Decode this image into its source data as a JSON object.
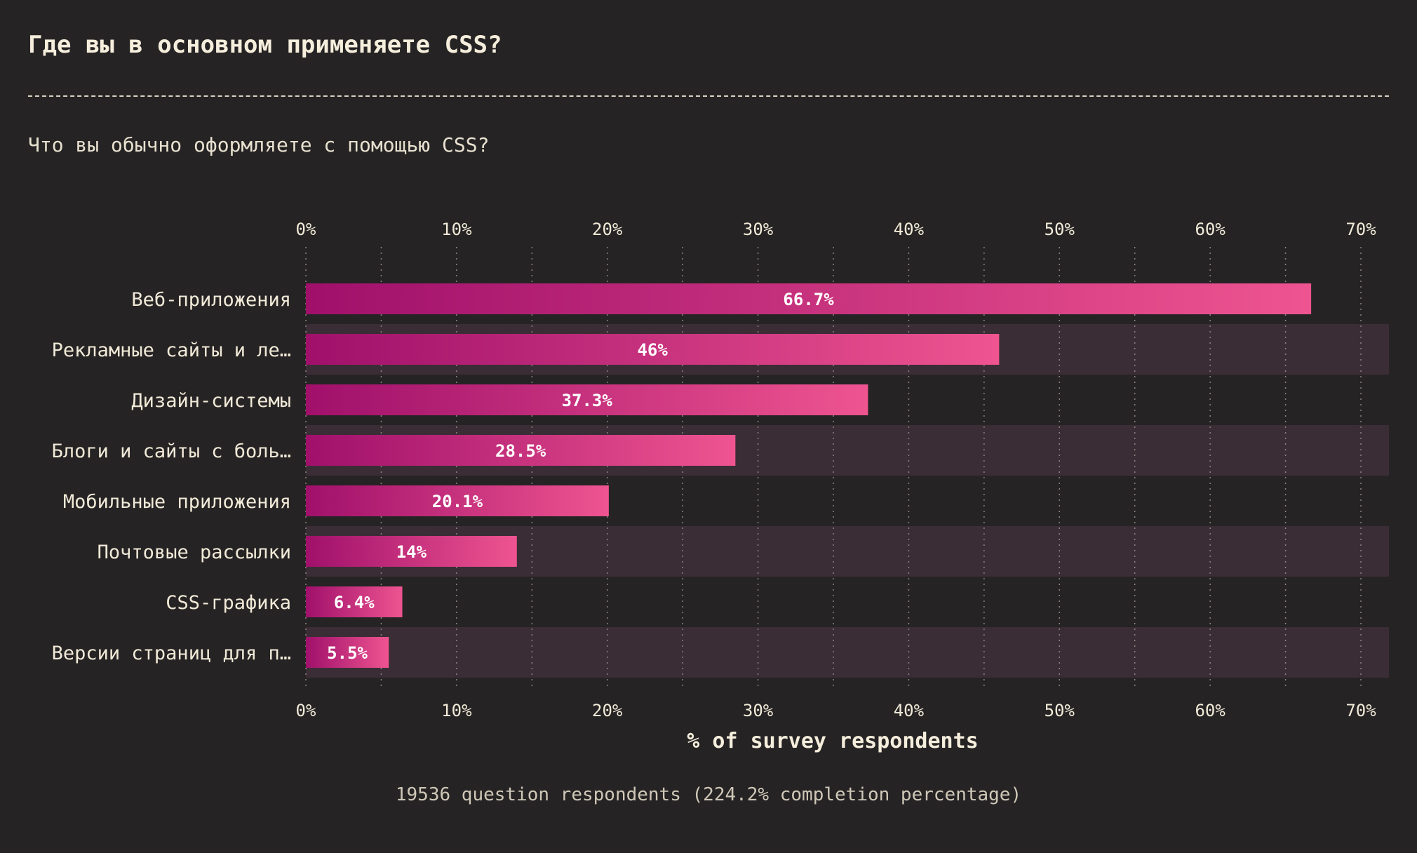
{
  "title": "Где вы в основном применяете CSS?",
  "subtitle": "Что вы обычно оформляете с помощью CSS?",
  "footnote": "19536 question respondents (224.2% completion percentage)",
  "colors": {
    "background": "#262324",
    "band": "#3b2d36",
    "bar_start": "#a0106b",
    "bar_end": "#ee5490",
    "text": "#f1ead8",
    "grid": "#8a8480"
  },
  "chart_data": {
    "type": "bar",
    "orientation": "horizontal",
    "categories": [
      "Веб-приложения",
      "Рекламные сайты и ле…",
      "Дизайн-системы",
      "Блоги и сайты с боль…",
      "Мобильные приложения",
      "Почтовые рассылки",
      "CSS-графика",
      "Версии страниц для п…"
    ],
    "values": [
      66.7,
      46,
      37.3,
      28.5,
      20.1,
      14,
      6.4,
      5.5
    ],
    "value_labels": [
      "66.7%",
      "46%",
      "37.3%",
      "28.5%",
      "20.1%",
      "14%",
      "6.4%",
      "5.5%"
    ],
    "xlim": [
      0,
      72
    ],
    "ticks": [
      0,
      10,
      20,
      30,
      40,
      50,
      60,
      70
    ],
    "tick_labels": [
      "0%",
      "10%",
      "20%",
      "30%",
      "40%",
      "50%",
      "60%",
      "70%"
    ],
    "minor_grid_step": 5,
    "xlabel": "% of survey respondents",
    "grid": true,
    "axis_position": "top and bottom"
  }
}
